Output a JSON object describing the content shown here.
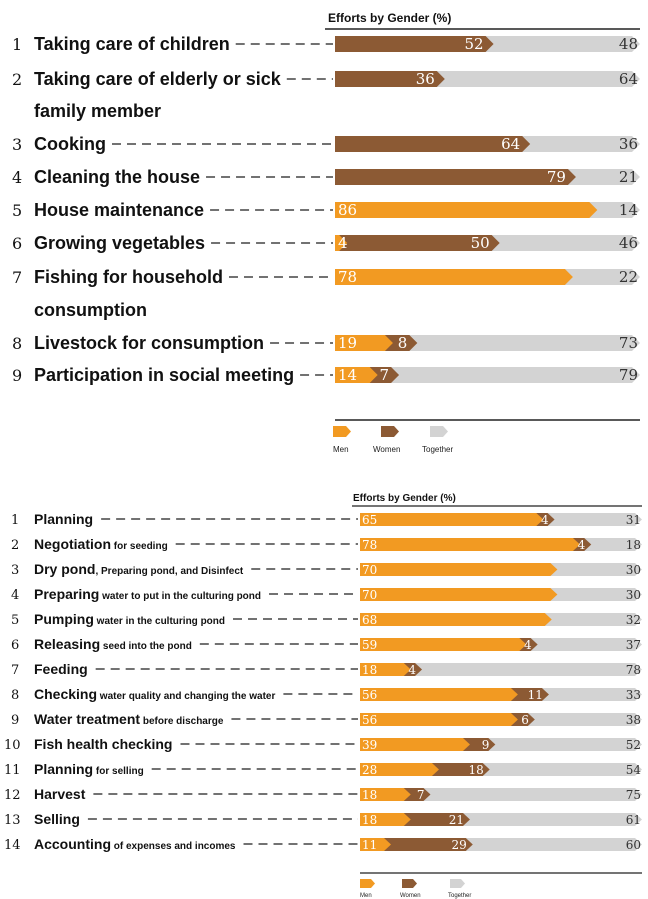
{
  "chart_data": [
    {
      "type": "bar",
      "stacked": true,
      "orientation": "horizontal",
      "title": "Efforts by Gender (%)",
      "legend": [
        "Men",
        "Women",
        "Together"
      ],
      "legend_position": "bottom",
      "colors": {
        "men": "#F29A22",
        "women": "#8C5A34",
        "together": "#D3D3D3"
      },
      "categories": [
        {
          "num": "1",
          "lines": [
            "Taking care of children"
          ]
        },
        {
          "num": "2",
          "lines": [
            "Taking care of elderly or sick",
            "family member"
          ]
        },
        {
          "num": "3",
          "lines": [
            "Cooking"
          ]
        },
        {
          "num": "4",
          "lines": [
            "Cleaning the house"
          ]
        },
        {
          "num": "5",
          "lines": [
            "House maintenance"
          ]
        },
        {
          "num": "6",
          "lines": [
            "Growing vegetables"
          ]
        },
        {
          "num": "7",
          "lines": [
            "Fishing for household",
            "consumption"
          ]
        },
        {
          "num": "8",
          "lines": [
            "Livestock for consumption"
          ]
        },
        {
          "num": "9",
          "lines": [
            "Participation in social meeting"
          ]
        }
      ],
      "series": [
        {
          "name": "Men",
          "values": [
            0,
            0,
            0,
            0,
            86,
            4,
            78,
            19,
            14
          ]
        },
        {
          "name": "Women",
          "values": [
            52,
            36,
            64,
            79,
            0,
            50,
            0,
            8,
            7
          ]
        },
        {
          "name": "Together",
          "values": [
            48,
            64,
            36,
            21,
            14,
            46,
            22,
            73,
            79
          ]
        }
      ]
    },
    {
      "type": "bar",
      "stacked": true,
      "orientation": "horizontal",
      "title": "Efforts by Gender (%)",
      "legend": [
        "Men",
        "Women",
        "Together"
      ],
      "legend_position": "bottom",
      "colors": {
        "men": "#F29A22",
        "women": "#8C5A34",
        "together": "#D3D3D3"
      },
      "categories": [
        {
          "num": "1",
          "main": "Planning",
          "sub": ""
        },
        {
          "num": "2",
          "main": "Negotiation",
          "sub": "for seeding"
        },
        {
          "num": "3",
          "main": "Dry pond",
          "sub": ", Preparing pond, and Disinfect"
        },
        {
          "num": "4",
          "main": "Preparing",
          "sub": "water to put in the culturing pond"
        },
        {
          "num": "5",
          "main": "Pumping",
          "sub": "water in the culturing pond"
        },
        {
          "num": "6",
          "main": "Releasing",
          "sub": "seed into the pond"
        },
        {
          "num": "7",
          "main": "Feeding",
          "sub": ""
        },
        {
          "num": "8",
          "main": "Checking",
          "sub": "water quality and changing the water"
        },
        {
          "num": "9",
          "main": "Water treatment",
          "sub": "before discharge"
        },
        {
          "num": "10",
          "main": "Fish health checking",
          "sub": ""
        },
        {
          "num": "11",
          "main": "Planning",
          "sub": "for selling"
        },
        {
          "num": "12",
          "main": "Harvest",
          "sub": ""
        },
        {
          "num": "13",
          "main": "Selling",
          "sub": ""
        },
        {
          "num": "14",
          "main": "Accounting",
          "sub": "of expenses and incomes"
        }
      ],
      "series": [
        {
          "name": "Men",
          "values": [
            65,
            78,
            70,
            70,
            68,
            59,
            18,
            56,
            56,
            39,
            28,
            18,
            18,
            11
          ]
        },
        {
          "name": "Women",
          "values": [
            4,
            4,
            0,
            0,
            0,
            4,
            4,
            11,
            6,
            9,
            18,
            7,
            21,
            29
          ]
        },
        {
          "name": "Together",
          "values": [
            31,
            18,
            30,
            30,
            32,
            37,
            78,
            33,
            38,
            52,
            54,
            75,
            61,
            60
          ]
        }
      ]
    }
  ]
}
